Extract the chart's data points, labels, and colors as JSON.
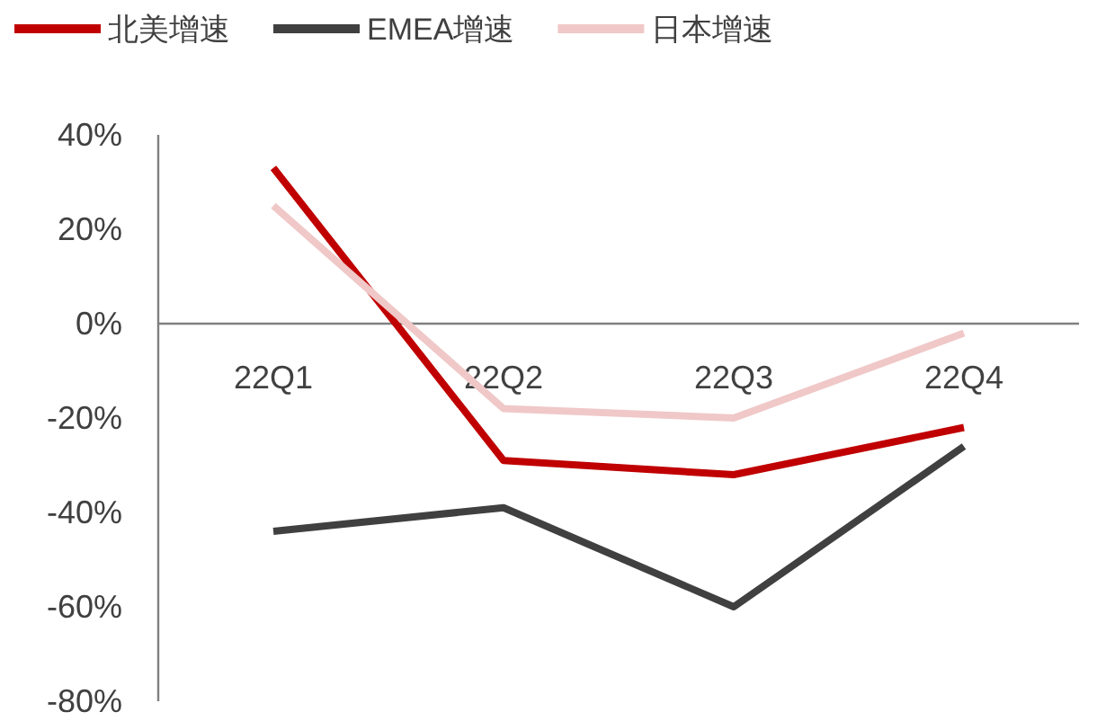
{
  "chart_data": {
    "type": "line",
    "categories": [
      "22Q1",
      "22Q2",
      "22Q3",
      "22Q4"
    ],
    "series": [
      {
        "name": "北美增速",
        "color": "#c00000",
        "values": [
          33,
          -29,
          -32,
          -22
        ]
      },
      {
        "name": "EMEA增速",
        "color": "#404040",
        "values": [
          -44,
          -39,
          -60,
          -26
        ]
      },
      {
        "name": "日本增速",
        "color": "#f0c8c8",
        "values": [
          25,
          -18,
          -20,
          -2
        ]
      }
    ],
    "ylim": [
      -80,
      40
    ],
    "yticks": [
      {
        "value": -80,
        "label": "-80%"
      },
      {
        "value": -60,
        "label": "-60%"
      },
      {
        "value": -40,
        "label": "-40%"
      },
      {
        "value": -20,
        "label": "-20%"
      },
      {
        "value": 0,
        "label": "0%"
      },
      {
        "value": 20,
        "label": "20%"
      },
      {
        "value": 40,
        "label": "40%"
      }
    ],
    "legend": "top",
    "grid": false,
    "marker": "none",
    "line_style": "solid"
  }
}
